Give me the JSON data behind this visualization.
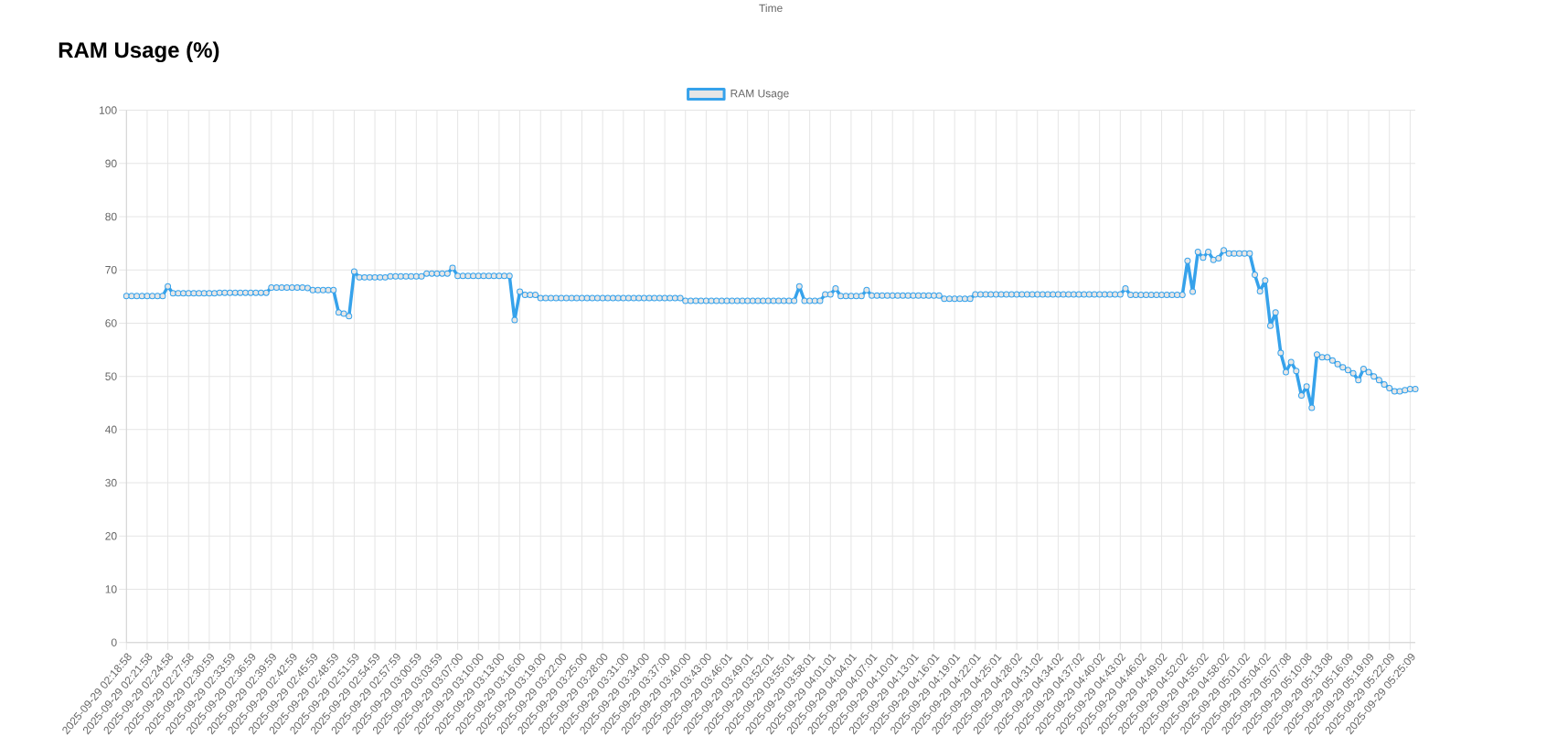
{
  "chart_data": {
    "type": "line",
    "title": "RAM Usage (%)",
    "annotations": [
      "Time"
    ],
    "categories": [
      "2025-09-29 02:18:58",
      null,
      null,
      null,
      "2025-09-29 02:21:58",
      null,
      null,
      null,
      "2025-09-29 02:24:58",
      null,
      null,
      null,
      "2025-09-29 02:27:58",
      null,
      null,
      null,
      "2025-09-29 02:30:59",
      null,
      null,
      null,
      "2025-09-29 02:33:59",
      null,
      null,
      null,
      "2025-09-29 02:36:59",
      null,
      null,
      null,
      "2025-09-29 02:39:59",
      null,
      null,
      null,
      "2025-09-29 02:42:59",
      null,
      null,
      null,
      "2025-09-29 02:45:59",
      null,
      null,
      null,
      "2025-09-29 02:48:59",
      null,
      null,
      null,
      "2025-09-29 02:51:59",
      null,
      null,
      null,
      "2025-09-29 02:54:59",
      null,
      null,
      null,
      "2025-09-29 02:57:59",
      null,
      null,
      null,
      "2025-09-29 03:00:59",
      null,
      null,
      null,
      "2025-09-29 03:03:59",
      null,
      null,
      null,
      "2025-09-29 03:07:00",
      null,
      null,
      null,
      "2025-09-29 03:10:00",
      null,
      null,
      null,
      "2025-09-29 03:13:00",
      null,
      null,
      null,
      "2025-09-29 03:16:00",
      null,
      null,
      null,
      "2025-09-29 03:19:00",
      null,
      null,
      null,
      "2025-09-29 03:22:00",
      null,
      null,
      null,
      "2025-09-29 03:25:00",
      null,
      null,
      null,
      "2025-09-29 03:28:00",
      null,
      null,
      null,
      "2025-09-29 03:31:00",
      null,
      null,
      null,
      "2025-09-29 03:34:00",
      null,
      null,
      null,
      "2025-09-29 03:37:00",
      null,
      null,
      null,
      "2025-09-29 03:40:00",
      null,
      null,
      null,
      "2025-09-29 03:43:00",
      null,
      null,
      null,
      "2025-09-29 03:46:01",
      null,
      null,
      null,
      "2025-09-29 03:49:01",
      null,
      null,
      null,
      "2025-09-29 03:52:01",
      null,
      null,
      null,
      "2025-09-29 03:55:01",
      null,
      null,
      null,
      "2025-09-29 03:58:01",
      null,
      null,
      null,
      "2025-09-29 04:01:01",
      null,
      null,
      null,
      "2025-09-29 04:04:01",
      null,
      null,
      null,
      "2025-09-29 04:07:01",
      null,
      null,
      null,
      "2025-09-29 04:10:01",
      null,
      null,
      null,
      "2025-09-29 04:13:01",
      null,
      null,
      null,
      "2025-09-29 04:16:01",
      null,
      null,
      null,
      "2025-09-29 04:19:01",
      null,
      null,
      null,
      "2025-09-29 04:22:01",
      null,
      null,
      null,
      "2025-09-29 04:25:01",
      null,
      null,
      null,
      "2025-09-29 04:28:02",
      null,
      null,
      null,
      "2025-09-29 04:31:02",
      null,
      null,
      null,
      "2025-09-29 04:34:02",
      null,
      null,
      null,
      "2025-09-29 04:37:02",
      null,
      null,
      null,
      "2025-09-29 04:40:02",
      null,
      null,
      null,
      "2025-09-29 04:43:02",
      null,
      null,
      null,
      "2025-09-29 04:46:02",
      null,
      null,
      null,
      "2025-09-29 04:49:02",
      null,
      null,
      null,
      "2025-09-29 04:52:02",
      null,
      null,
      null,
      "2025-09-29 04:55:02",
      null,
      null,
      null,
      "2025-09-29 04:58:02",
      null,
      null,
      null,
      "2025-09-29 05:01:02",
      null,
      null,
      null,
      "2025-09-29 05:04:02",
      null,
      null,
      null,
      "2025-09-29 05:07:08",
      null,
      null,
      null,
      "2025-09-29 05:10:08",
      null,
      null,
      null,
      "2025-09-29 05:13:08",
      null,
      null,
      null,
      "2025-09-29 05:16:09",
      null,
      null,
      null,
      "2025-09-29 05:19:09",
      null,
      null,
      null,
      "2025-09-29 05:22:09",
      null,
      null,
      null,
      "2025-09-29 05:25:09",
      null
    ],
    "series": [
      {
        "name": "RAM Usage",
        "color": "#36a2eb",
        "values": [
          65.1,
          65.1,
          65.1,
          65.1,
          65.1,
          65.1,
          65.1,
          65.1,
          66.9,
          65.6,
          65.6,
          65.6,
          65.6,
          65.6,
          65.6,
          65.6,
          65.6,
          65.6,
          65.7,
          65.7,
          65.7,
          65.7,
          65.7,
          65.7,
          65.7,
          65.7,
          65.7,
          65.7,
          66.7,
          66.7,
          66.7,
          66.7,
          66.7,
          66.7,
          66.7,
          66.6,
          66.2,
          66.2,
          66.2,
          66.2,
          66.2,
          62.0,
          61.8,
          61.3,
          69.7,
          68.6,
          68.6,
          68.6,
          68.6,
          68.6,
          68.6,
          68.8,
          68.8,
          68.8,
          68.8,
          68.8,
          68.8,
          68.8,
          69.3,
          69.3,
          69.3,
          69.3,
          69.3,
          70.4,
          68.9,
          68.9,
          68.9,
          68.9,
          68.9,
          68.9,
          68.9,
          68.9,
          68.9,
          68.9,
          68.9,
          60.6,
          65.9,
          65.3,
          65.3,
          65.3,
          64.7,
          64.7,
          64.7,
          64.7,
          64.7,
          64.7,
          64.7,
          64.7,
          64.7,
          64.7,
          64.7,
          64.7,
          64.7,
          64.7,
          64.7,
          64.7,
          64.7,
          64.7,
          64.7,
          64.7,
          64.7,
          64.7,
          64.7,
          64.7,
          64.7,
          64.7,
          64.7,
          64.7,
          64.2,
          64.2,
          64.2,
          64.2,
          64.2,
          64.2,
          64.2,
          64.2,
          64.2,
          64.2,
          64.2,
          64.2,
          64.2,
          64.2,
          64.2,
          64.2,
          64.2,
          64.2,
          64.2,
          64.2,
          64.2,
          64.2,
          66.9,
          64.2,
          64.2,
          64.2,
          64.2,
          65.4,
          65.4,
          66.5,
          65.1,
          65.1,
          65.1,
          65.1,
          65.1,
          66.2,
          65.2,
          65.2,
          65.2,
          65.2,
          65.2,
          65.2,
          65.2,
          65.2,
          65.2,
          65.2,
          65.2,
          65.2,
          65.2,
          65.2,
          64.6,
          64.6,
          64.6,
          64.6,
          64.6,
          64.6,
          65.4,
          65.4,
          65.4,
          65.4,
          65.4,
          65.4,
          65.4,
          65.4,
          65.4,
          65.4,
          65.4,
          65.4,
          65.4,
          65.4,
          65.4,
          65.4,
          65.4,
          65.4,
          65.4,
          65.4,
          65.4,
          65.4,
          65.4,
          65.4,
          65.4,
          65.4,
          65.4,
          65.4,
          65.4,
          66.5,
          65.3,
          65.3,
          65.3,
          65.3,
          65.3,
          65.3,
          65.3,
          65.3,
          65.3,
          65.3,
          65.3,
          71.7,
          65.9,
          73.4,
          72.3,
          73.4,
          71.9,
          72.2,
          73.7,
          73.1,
          73.1,
          73.1,
          73.1,
          73.1,
          69.1,
          66.0,
          68.0,
          59.5,
          62.0,
          54.4,
          50.8,
          52.7,
          51.0,
          46.4,
          48.1,
          44.1,
          54.1,
          53.6,
          53.6,
          53.0,
          52.3,
          51.7,
          51.2,
          50.6,
          49.3,
          51.4,
          50.8,
          50.0,
          49.3,
          48.5,
          47.8,
          47.2,
          47.2,
          47.4,
          47.6,
          47.6
        ]
      }
    ],
    "ylim": [
      0,
      100
    ],
    "yticks": [
      0,
      10,
      20,
      30,
      40,
      50,
      60,
      70,
      80,
      90,
      100
    ],
    "grid": true,
    "legend": "top",
    "marker": "circle",
    "line_style": "solid"
  }
}
